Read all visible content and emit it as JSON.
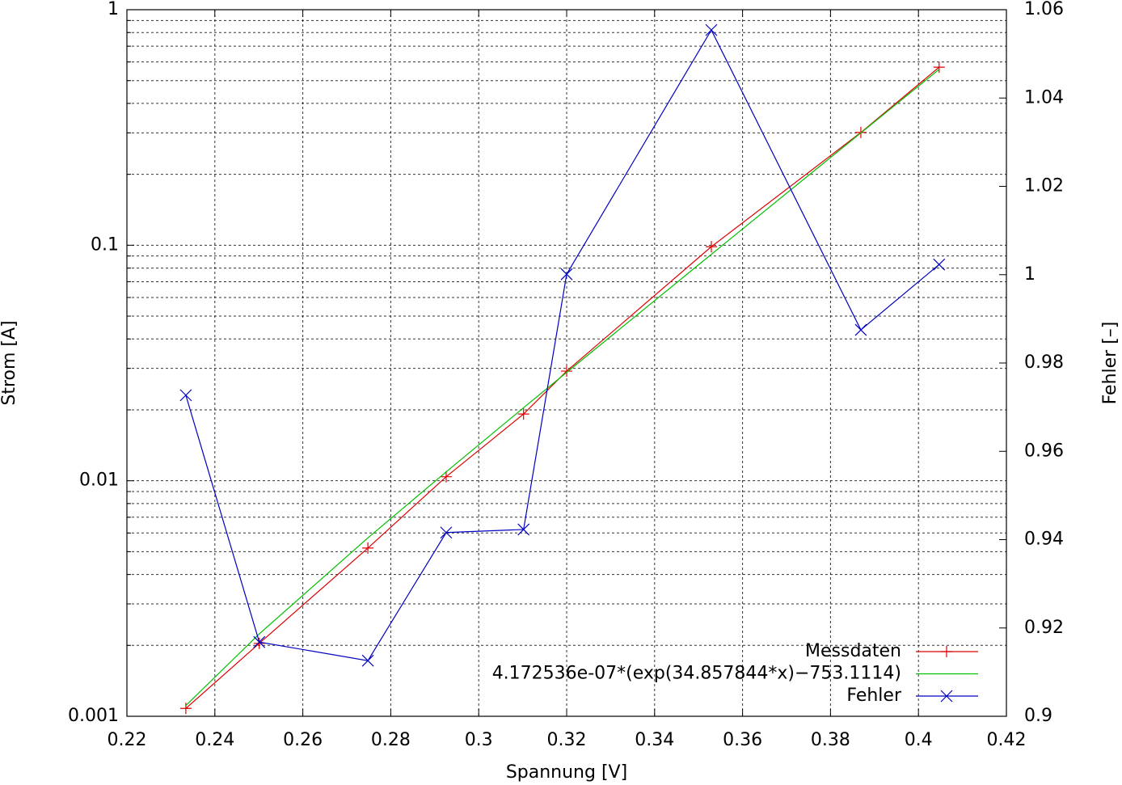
{
  "chart_data": {
    "type": "line",
    "xlabel": "Spannung [V]",
    "ylabel": "Strom [A]",
    "y2label": "Fehler [–]",
    "x": [
      0.2334,
      0.2501,
      0.2748,
      0.2926,
      0.3102,
      0.32,
      0.3529,
      0.3869,
      0.4047
    ],
    "series": [
      {
        "name": "Messdaten",
        "color": "#e00000",
        "marker": "+",
        "axis": "y",
        "values": [
          0.00108,
          0.00204,
          0.00518,
          0.0104,
          0.0192,
          0.0292,
          0.0986,
          0.301,
          0.57
        ]
      },
      {
        "name": "4.172536e-07*(exp(34.857844*x)−753.1114)",
        "color": "#00c000",
        "marker": "none",
        "axis": "y",
        "values": [
          0.001111,
          0.002238,
          0.005723,
          0.010909,
          0.020419,
          0.028843,
          0.09147,
          0.29995,
          0.5581
        ]
      },
      {
        "name": "Fehler",
        "color": "#0000c0",
        "marker": "x",
        "axis": "y2",
        "values": [
          0.9727,
          0.9168,
          0.9126,
          0.9416,
          0.9423,
          1.0001,
          1.0554,
          0.9875,
          1.0023
        ]
      }
    ],
    "xlim": [
      0.22,
      0.42
    ],
    "xticks": [
      0.22,
      0.24,
      0.26,
      0.28,
      0.3,
      0.32,
      0.34,
      0.36,
      0.38,
      0.4,
      0.42
    ],
    "ylim": [
      0.001,
      1
    ],
    "yscale": "log",
    "yticks": [
      0.001,
      0.01,
      0.1,
      1
    ],
    "yminorticks": [
      0.002,
      0.003,
      0.004,
      0.005,
      0.006,
      0.007,
      0.008,
      0.009,
      0.02,
      0.03,
      0.04,
      0.05,
      0.06,
      0.07,
      0.08,
      0.09,
      0.2,
      0.3,
      0.4,
      0.5,
      0.6,
      0.7,
      0.8,
      0.9
    ],
    "y2lim": [
      0.9,
      1.06
    ],
    "y2ticks": [
      0.9,
      0.92,
      0.94,
      0.96,
      0.98,
      1,
      1.02,
      1.04,
      1.06
    ],
    "grid": true,
    "legend": "lower-right"
  }
}
